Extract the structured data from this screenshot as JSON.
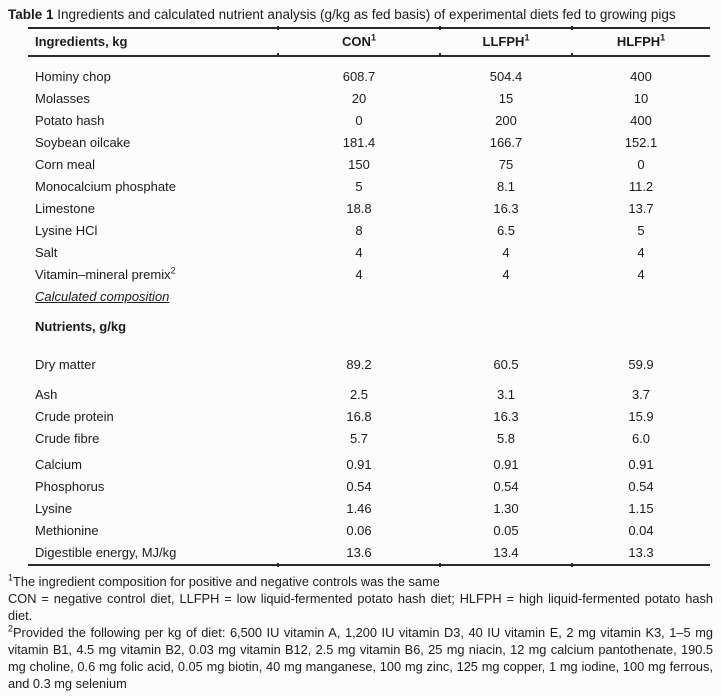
{
  "title": {
    "prefix": "Table 1",
    "text": "Ingredients and calculated nutrient analysis (g/kg as fed basis) of experimental diets fed to growing pigs"
  },
  "table": {
    "columns": [
      {
        "label": "Ingredients, kg",
        "sup": ""
      },
      {
        "label": "CON",
        "sup": "1"
      },
      {
        "label": "LLFPH",
        "sup": "1"
      },
      {
        "label": "HLFPH",
        "sup": "1"
      }
    ],
    "rows": [
      {
        "type": "data",
        "label": "Hominy chop",
        "sup": "",
        "values": [
          "608.7",
          "504.4",
          "400"
        ]
      },
      {
        "type": "data",
        "label": "Molasses",
        "sup": "",
        "values": [
          "20",
          "15",
          "10"
        ]
      },
      {
        "type": "data",
        "label": "Potato hash",
        "sup": "",
        "values": [
          "0",
          "200",
          "400"
        ]
      },
      {
        "type": "data",
        "label": "Soybean oilcake",
        "sup": "",
        "values": [
          "181.4",
          "166.7",
          "152.1"
        ]
      },
      {
        "type": "data",
        "label": "Corn meal",
        "sup": "",
        "values": [
          "150",
          "75",
          "0"
        ]
      },
      {
        "type": "data",
        "label": "Monocalcium phosphate",
        "sup": "",
        "values": [
          "5",
          "8.1",
          "11.2"
        ]
      },
      {
        "type": "data",
        "label": "Limestone",
        "sup": "",
        "values": [
          "18.8",
          "16.3",
          "13.7"
        ]
      },
      {
        "type": "data",
        "label": "Lysine HCl",
        "sup": "",
        "values": [
          "8",
          "6.5",
          "5"
        ]
      },
      {
        "type": "data",
        "label": "Salt",
        "sup": "",
        "values": [
          "4",
          "4",
          "4"
        ]
      },
      {
        "type": "data",
        "label": "Vitamin–mineral premix",
        "sup": "2",
        "values": [
          "4",
          "4",
          "4"
        ]
      },
      {
        "type": "section-italic",
        "label": "Calculated composition"
      },
      {
        "type": "section-bold",
        "label": "Nutrients, g/kg"
      },
      {
        "type": "data",
        "label": "Dry matter",
        "sup": "",
        "values": [
          "89.2",
          "60.5",
          "59.9"
        ]
      },
      {
        "type": "data",
        "label": "Ash",
        "sup": "",
        "values": [
          "2.5",
          "3.1",
          "3.7"
        ]
      },
      {
        "type": "data",
        "label": "Crude protein",
        "sup": "",
        "values": [
          "16.8",
          "16.3",
          "15.9"
        ]
      },
      {
        "type": "data",
        "label": "Crude fibre",
        "sup": "",
        "values": [
          "5.7",
          "5.8",
          "6.0"
        ]
      },
      {
        "type": "data",
        "label": "Calcium",
        "sup": "",
        "values": [
          "0.91",
          "0.91",
          "0.91"
        ]
      },
      {
        "type": "data",
        "label": "Phosphorus",
        "sup": "",
        "values": [
          "0.54",
          "0.54",
          "0.54"
        ]
      },
      {
        "type": "data",
        "label": "Lysine",
        "sup": "",
        "values": [
          "1.46",
          "1.30",
          "1.15"
        ]
      },
      {
        "type": "data",
        "label": "Methionine",
        "sup": "",
        "values": [
          "0.06",
          "0.05",
          "0.04"
        ]
      },
      {
        "type": "data",
        "label": "Digestible energy, MJ/kg",
        "sup": "",
        "values": [
          "13.6",
          "13.4",
          "13.3"
        ]
      }
    ]
  },
  "footnotes": [
    {
      "sup": "1",
      "text": "The ingredient composition for positive and negative controls was the same"
    },
    {
      "sup": "",
      "text": "CON = negative control diet, LLFPH = low liquid-fermented potato hash diet; HLFPH = high liquid-fermented potato hash diet."
    },
    {
      "sup": "2",
      "text": "Provided the following per kg of diet: 6,500 IU vitamin A, 1,200 IU vitamin D3, 40 IU vitamin E, 2 mg vitamin K3, 1–5 mg vitamin B1, 4.5 mg vitamin B2, 0.03 mg vitamin B12, 2.5 mg vitamin B6, 25 mg niacin, 12 mg calcium pantothenate, 190.5 mg choline, 0.6 mg folic acid, 0.05 mg biotin, 40 mg manganese, 100 mg zinc, 125 mg copper, 1 mg iodine, 100 mg ferrous, and 0.3 mg selenium"
    }
  ],
  "colors": {
    "text": "#1c1c1c",
    "rule": "#2a2a2a",
    "background": "#fcfcfc"
  }
}
